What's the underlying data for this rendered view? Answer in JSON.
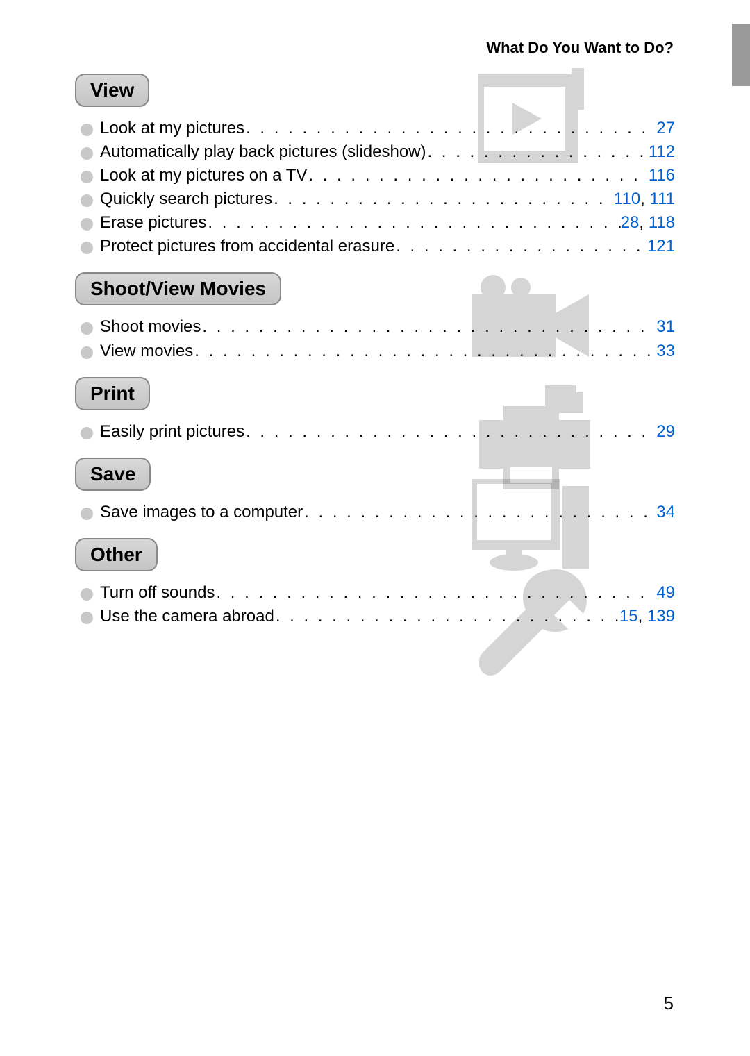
{
  "header": {
    "title": "What Do You Want to Do?"
  },
  "page_number": "5",
  "colors": {
    "link": "#0060d0",
    "bullet": "#c8c8c8",
    "heading_bg_top": "#d8d8d8",
    "heading_bg_bottom": "#c5c5c5",
    "heading_border": "#888888",
    "watermark": "#000000",
    "watermark_opacity": 0.16,
    "tab": "#999999"
  },
  "typography": {
    "header_fontsize": 22,
    "heading_fontsize": 28,
    "entry_fontsize": 24,
    "page_number_fontsize": 26,
    "font_family": "Arial"
  },
  "sections": [
    {
      "id": "view",
      "title": "View",
      "icon": "play",
      "entries": [
        {
          "label": "Look at my pictures",
          "pages": [
            "27"
          ]
        },
        {
          "label": "Automatically play back pictures (slideshow)",
          "pages": [
            "112"
          ]
        },
        {
          "label": "Look at my pictures on a TV",
          "pages": [
            "116"
          ]
        },
        {
          "label": "Quickly search pictures",
          "pages": [
            "110",
            "111"
          ]
        },
        {
          "label": "Erase pictures",
          "pages": [
            "28",
            "118"
          ]
        },
        {
          "label": "Protect pictures from accidental erasure",
          "pages": [
            "121"
          ]
        }
      ]
    },
    {
      "id": "movies",
      "title": "Shoot/View Movies",
      "icon": "camcorder",
      "entries": [
        {
          "label": "Shoot movies",
          "pages": [
            "31"
          ]
        },
        {
          "label": "View movies",
          "pages": [
            "33"
          ]
        }
      ]
    },
    {
      "id": "print",
      "title": "Print",
      "icon": "printer",
      "entries": [
        {
          "label": "Easily print pictures",
          "pages": [
            "29"
          ]
        }
      ]
    },
    {
      "id": "save",
      "title": "Save",
      "icon": "computer",
      "entries": [
        {
          "label": "Save images to a computer",
          "pages": [
            "34"
          ]
        }
      ]
    },
    {
      "id": "other",
      "title": "Other",
      "icon": "wrench",
      "entries": [
        {
          "label": "Turn off sounds",
          "pages": [
            "49"
          ]
        },
        {
          "label": "Use the camera abroad",
          "pages": [
            "15",
            "139"
          ]
        }
      ]
    }
  ]
}
